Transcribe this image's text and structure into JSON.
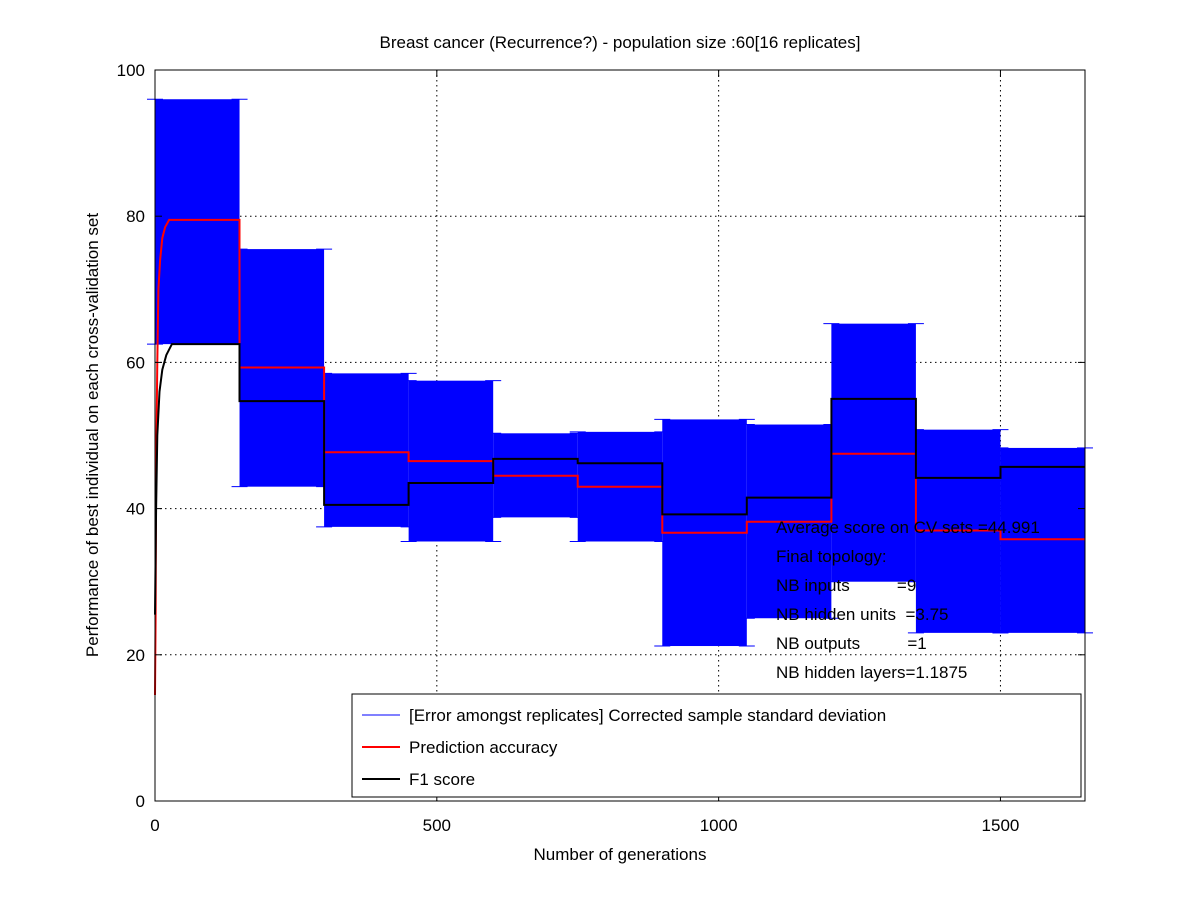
{
  "chart_data": {
    "type": "line",
    "title": "Breast cancer (Recurrence?) - population size :60[16 replicates]",
    "xlabel": "Number of generations",
    "ylabel": "Performance of best individual on each cross-validation set",
    "xlim": [
      0,
      1650
    ],
    "ylim": [
      0,
      100
    ],
    "xticks": [
      0,
      500,
      1000,
      1500
    ],
    "yticks": [
      0,
      20,
      40,
      60,
      80,
      100
    ],
    "grid": true,
    "legend_position": "bottom-right",
    "series": [
      {
        "name": "[Error amongst replicates] Corrected sample standard deviation",
        "color": "#0000ff",
        "style": "errorbars",
        "segments": [
          {
            "x": [
              0,
              150
            ],
            "low": 62.5,
            "high": 96
          },
          {
            "x": [
              150,
              300
            ],
            "low": 43,
            "high": 75.5
          },
          {
            "x": [
              300,
              450
            ],
            "low": 37.5,
            "high": 58.5
          },
          {
            "x": [
              450,
              600
            ],
            "low": 35.5,
            "high": 57.5
          },
          {
            "x": [
              600,
              750
            ],
            "low": 38.8,
            "high": 50.3
          },
          {
            "x": [
              750,
              900
            ],
            "low": 35.5,
            "high": 50.5
          },
          {
            "x": [
              900,
              1050
            ],
            "low": 21.2,
            "high": 52.2
          },
          {
            "x": [
              1050,
              1200
            ],
            "low": 25,
            "high": 51.5
          },
          {
            "x": [
              1200,
              1350
            ],
            "low": 30,
            "high": 65.3
          },
          {
            "x": [
              1350,
              1500
            ],
            "low": 23,
            "high": 50.8
          },
          {
            "x": [
              1500,
              1650
            ],
            "low": 23,
            "high": 48.3
          }
        ]
      },
      {
        "name": "Prediction accuracy",
        "color": "#ff0000",
        "x": [
          0,
          1,
          2,
          4,
          6,
          9,
          13,
          18,
          25,
          150,
          150,
          300,
          300,
          450,
          450,
          600,
          600,
          750,
          750,
          900,
          900,
          1050,
          1050,
          1200,
          1200,
          1350,
          1350,
          1500,
          1500,
          1650
        ],
        "y": [
          14.5,
          25,
          45,
          60,
          70,
          74,
          77,
          78.5,
          79.5,
          79.5,
          59.3,
          59.3,
          47.7,
          47.7,
          46.5,
          46.5,
          44.5,
          44.5,
          43,
          43,
          36.7,
          36.7,
          38.2,
          38.2,
          47.5,
          47.5,
          37,
          37,
          35.8,
          35.8
        ]
      },
      {
        "name": "F1 score",
        "color": "#000000",
        "x": [
          0,
          2,
          4,
          8,
          13,
          20,
          30,
          150,
          150,
          300,
          300,
          450,
          450,
          600,
          600,
          750,
          750,
          900,
          900,
          1050,
          1050,
          1200,
          1200,
          1350,
          1350,
          1500,
          1500,
          1650
        ],
        "y": [
          25.5,
          40,
          50,
          56,
          59,
          61,
          62.5,
          62.5,
          54.7,
          54.7,
          40.5,
          40.5,
          43.5,
          43.5,
          46.8,
          46.8,
          46.2,
          46.2,
          39.2,
          39.2,
          41.5,
          41.5,
          55,
          55,
          44.2,
          44.2,
          45.7,
          45.7
        ]
      }
    ],
    "annotations": [
      "Average score on CV sets =44.991",
      "Final topology:",
      "NB inputs          =9",
      "NB hidden units  =3.75",
      "NB outputs          =1",
      "NB hidden layers=1.1875"
    ]
  }
}
